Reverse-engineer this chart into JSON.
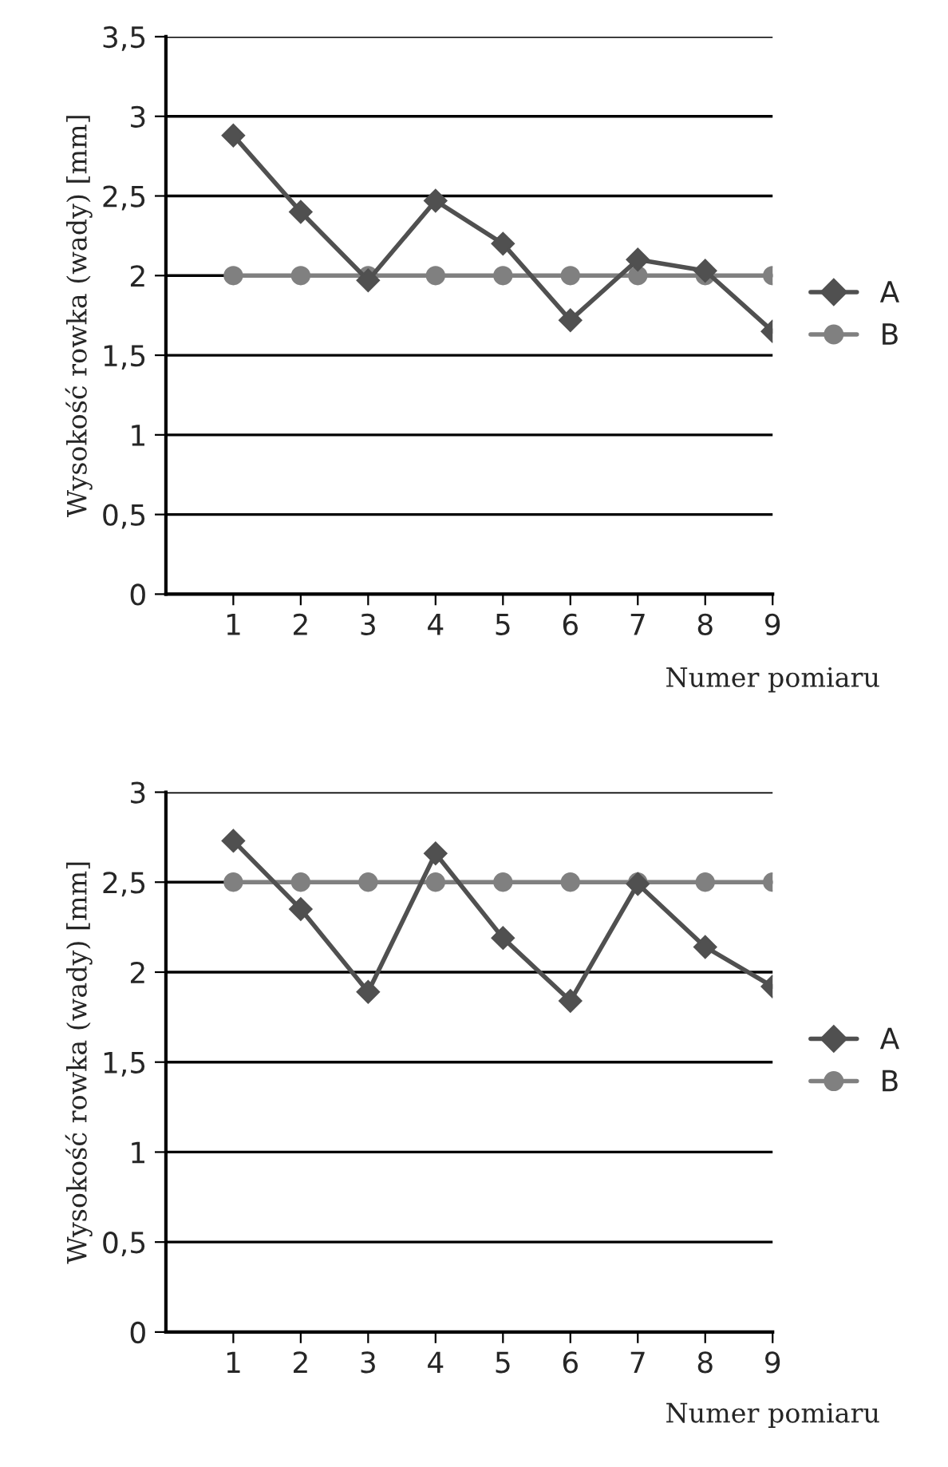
{
  "chart_data": [
    {
      "type": "line",
      "ylabel": "Wysokość rowka (wady) [mm]",
      "xlabel": "Numer pomiaru",
      "categories": [
        "1",
        "2",
        "3",
        "4",
        "5",
        "6",
        "7",
        "8",
        "9"
      ],
      "series": [
        {
          "name": "A",
          "color": "#505050",
          "marker": "diamond",
          "values": [
            2.88,
            2.4,
            1.97,
            2.47,
            2.2,
            1.72,
            2.1,
            2.03,
            1.65
          ]
        },
        {
          "name": "B",
          "color": "#808080",
          "marker": "circle",
          "values": [
            2,
            2,
            2,
            2,
            2,
            2,
            2,
            2,
            2
          ]
        }
      ],
      "ylim": [
        0,
        3.5
      ],
      "yticks": [
        {
          "value": 0,
          "label": "0"
        },
        {
          "value": 0.5,
          "label": "0,5"
        },
        {
          "value": 1,
          "label": "1"
        },
        {
          "value": 1.5,
          "label": "1,5"
        },
        {
          "value": 2,
          "label": "2"
        },
        {
          "value": 2.5,
          "label": "2,5"
        },
        {
          "value": 3,
          "label": "3"
        },
        {
          "value": 3.5,
          "label": "3,5"
        }
      ],
      "grid": "y",
      "legend": "right"
    },
    {
      "type": "line",
      "ylabel": "Wysokość rowka (wady) [mm]",
      "xlabel": "Numer pomiaru",
      "categories": [
        "1",
        "2",
        "3",
        "4",
        "5",
        "6",
        "7",
        "8",
        "9"
      ],
      "series": [
        {
          "name": "A",
          "color": "#505050",
          "marker": "diamond",
          "values": [
            2.73,
            2.35,
            1.89,
            2.66,
            2.19,
            1.84,
            2.49,
            2.14,
            1.92
          ]
        },
        {
          "name": "B",
          "color": "#808080",
          "marker": "circle",
          "values": [
            2.5,
            2.5,
            2.5,
            2.5,
            2.5,
            2.5,
            2.5,
            2.5,
            2.5
          ]
        }
      ],
      "ylim": [
        0,
        3
      ],
      "yticks": [
        {
          "value": 0,
          "label": "0"
        },
        {
          "value": 0.5,
          "label": "0,5"
        },
        {
          "value": 1,
          "label": "1"
        },
        {
          "value": 1.5,
          "label": "1,5"
        },
        {
          "value": 2,
          "label": "2"
        },
        {
          "value": 2.5,
          "label": "2,5"
        },
        {
          "value": 3,
          "label": "3"
        }
      ],
      "grid": "y",
      "legend": "right"
    }
  ]
}
